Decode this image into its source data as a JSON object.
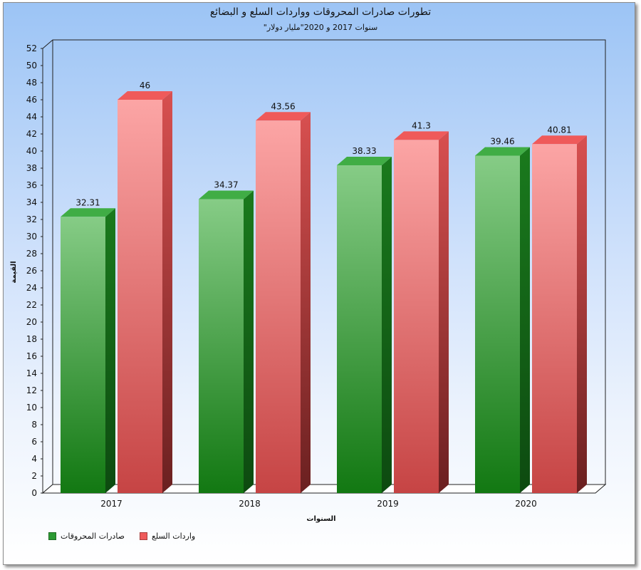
{
  "colors": {
    "exports_front": "#2c9a33",
    "exports_side": "#136316",
    "exports_top": "#40ad45",
    "imports_front": "#f08a8a",
    "imports_side": "#b93c3c",
    "imports_top": "#ef5a5a"
  },
  "chart_data": {
    "type": "bar",
    "title": "تطورات صادرات المحروقات وواردات السلع و البضائع",
    "subtitle": "\"سنوات 2017 و 2020\"مليار دولار",
    "xlabel": "السنوات",
    "ylabel": "القيمة",
    "ylim": [
      0,
      52
    ],
    "ytick_step": 2,
    "categories": [
      "2017",
      "2018",
      "2019",
      "2020"
    ],
    "series": [
      {
        "name": "صادرات المحروقات",
        "values": [
          32.31,
          34.37,
          38.33,
          39.46
        ],
        "value_labels": [
          "32.31",
          "34.37",
          "38.33",
          "39.46"
        ]
      },
      {
        "name": "واردات السلع",
        "values": [
          46,
          43.56,
          41.3,
          40.81
        ],
        "value_labels": [
          "46",
          "43.56",
          "41.3",
          "40.81"
        ]
      }
    ],
    "legend_position": "bottom-left",
    "grid": false
  }
}
